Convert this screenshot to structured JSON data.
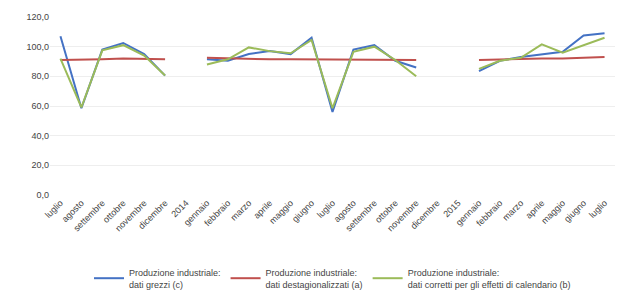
{
  "chart_data": {
    "type": "line",
    "categories": [
      "luglio",
      "agosto",
      "settembre",
      "ottobre",
      "novembre",
      "dicembre",
      "2014",
      "gennaio",
      "febbraio",
      "marzo",
      "aprile",
      "maggio",
      "giugno",
      "luglio",
      "agosto",
      "settembre",
      "ottobre",
      "novembre",
      "dicembre",
      "2015",
      "gennaio",
      "febbraio",
      "marzo",
      "aprile",
      "maggio",
      "giugno",
      "luglio"
    ],
    "series": [
      {
        "name": "Produzione industriale:\ndati grezzi (c)",
        "color": "#4472C4",
        "values": [
          107.0,
          58.5,
          98.0,
          102.5,
          95.0,
          80.5,
          null,
          91.5,
          90.5,
          95.0,
          97.0,
          95.0,
          106.0,
          56.0,
          98.0,
          101.0,
          90.5,
          86.0,
          null,
          null,
          83.5,
          90.5,
          93.0,
          95.0,
          96.5,
          107.5,
          109.0
        ]
      },
      {
        "name": "Produzione industriale:\ndati destagionalizzati (a)",
        "color": "#C0504D",
        "values": [
          91.0,
          91.0,
          91.5,
          92.0,
          92.0,
          91.5,
          null,
          92.5,
          92.0,
          91.5,
          91.5,
          91.5,
          91.5,
          91.5,
          91.5,
          91.5,
          91.0,
          91.0,
          null,
          null,
          91.0,
          91.5,
          91.5,
          92.0,
          92.0,
          92.5,
          93.0
        ]
      },
      {
        "name": "Produzione industriale:\ndati corretti per gli effetti di calendario (b)",
        "color": "#9BBB59",
        "values": [
          92.0,
          59.0,
          97.5,
          101.0,
          94.0,
          80.5,
          null,
          88.0,
          91.5,
          99.5,
          97.0,
          95.5,
          104.5,
          58.5,
          96.5,
          100.0,
          91.0,
          80.0,
          null,
          null,
          85.0,
          90.5,
          92.5,
          101.5,
          96.0,
          101.0,
          106.0
        ]
      }
    ],
    "ylim": [
      0,
      120
    ],
    "yticks": [
      {
        "value": 0,
        "label": "0,0"
      },
      {
        "value": 20,
        "label": "20,0"
      },
      {
        "value": 40,
        "label": "40,0"
      },
      {
        "value": 60,
        "label": "60,0"
      },
      {
        "value": 80,
        "label": "80,0"
      },
      {
        "value": 100,
        "label": "100,0"
      },
      {
        "value": 120,
        "label": "120,0"
      }
    ],
    "grid": true,
    "legend": "bottom"
  }
}
